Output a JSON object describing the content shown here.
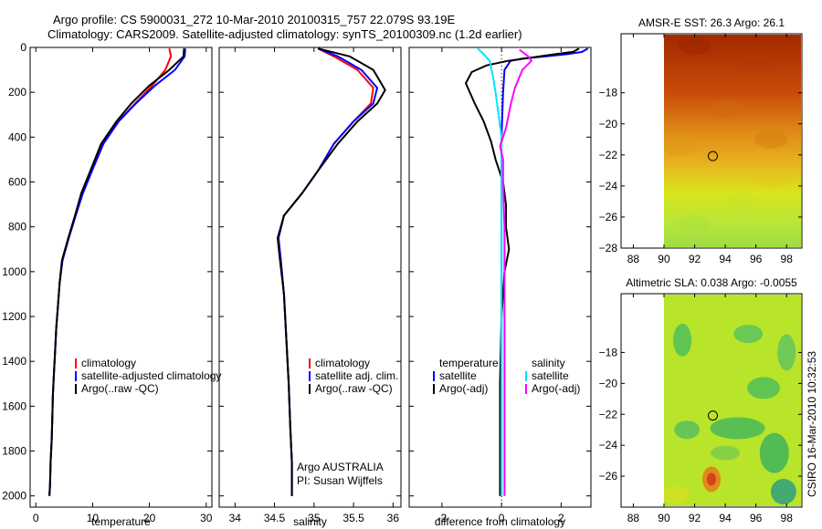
{
  "header": {
    "line1": "Argo profile: CS 5900031_272 10-Mar-2010 20100315_757 22.079S 93.19E",
    "line2": "Climatology: CARS2009. Satellite-adjusted climatology: synTS_20100309.nc (1.2d earlier)"
  },
  "side_label": "CSIRO 16-Mar-2010 10:32:53",
  "colors": {
    "climatology": "#ff0000",
    "satellite": "#0000ff",
    "argo": "#000000",
    "satellite_salinity": "#00e5ff",
    "argo_salinity": "#ff00ff"
  },
  "chart_data": [
    {
      "type": "line",
      "title": "",
      "xlabel": "temperature",
      "ylabel": "",
      "xlim": [
        -1,
        31
      ],
      "ylim": [
        2050,
        0
      ],
      "xticks": [
        0,
        10,
        20,
        30
      ],
      "yticks": [
        0,
        200,
        400,
        600,
        800,
        1000,
        1200,
        1400,
        1600,
        1800,
        2000
      ],
      "legend": {
        "placement": "bottom-right",
        "entries": [
          "climatology",
          "satellite-adjusted climatology",
          "Argo(..raw -QC)"
        ]
      },
      "series": [
        {
          "name": "climatology",
          "color": "#ff0000",
          "points": [
            [
              23.5,
              5
            ],
            [
              23.8,
              40
            ],
            [
              22.8,
              100
            ],
            [
              20.5,
              170
            ],
            [
              17.5,
              250
            ],
            [
              14.5,
              330
            ],
            [
              11.8,
              430
            ],
            [
              9.8,
              550
            ],
            [
              8.2,
              650
            ],
            [
              7.0,
              750
            ],
            [
              5.8,
              850
            ],
            [
              4.7,
              950
            ],
            [
              4.2,
              1050
            ],
            [
              3.9,
              1150
            ],
            [
              3.6,
              1250
            ],
            [
              3.4,
              1350
            ],
            [
              3.2,
              1450
            ],
            [
              3.0,
              1550
            ],
            [
              2.9,
              1650
            ],
            [
              2.8,
              1750
            ],
            [
              2.6,
              1850
            ],
            [
              2.5,
              1950
            ],
            [
              2.4,
              2000
            ]
          ]
        },
        {
          "name": "satellite-adjusted climatology",
          "color": "#0000ff",
          "points": [
            [
              26.3,
              5
            ],
            [
              26.2,
              40
            ],
            [
              24.5,
              100
            ],
            [
              21.0,
              170
            ],
            [
              17.6,
              250
            ],
            [
              14.6,
              330
            ],
            [
              11.9,
              430
            ],
            [
              9.9,
              550
            ],
            [
              8.3,
              650
            ],
            [
              7.0,
              750
            ],
            [
              5.8,
              850
            ],
            [
              4.7,
              950
            ],
            [
              4.2,
              1050
            ],
            [
              3.9,
              1150
            ],
            [
              3.6,
              1250
            ],
            [
              3.4,
              1350
            ],
            [
              3.2,
              1450
            ],
            [
              3.0,
              1550
            ],
            [
              2.9,
              1650
            ],
            [
              2.8,
              1750
            ],
            [
              2.6,
              1850
            ],
            [
              2.5,
              1950
            ],
            [
              2.4,
              2000
            ]
          ]
        },
        {
          "name": "Argo(..raw -QC)",
          "color": "#000000",
          "points": [
            [
              26.1,
              5
            ],
            [
              26.0,
              40
            ],
            [
              23.5,
              100
            ],
            [
              20.0,
              170
            ],
            [
              16.8,
              250
            ],
            [
              14.2,
              330
            ],
            [
              11.5,
              430
            ],
            [
              9.6,
              550
            ],
            [
              8.0,
              650
            ],
            [
              6.9,
              750
            ],
            [
              5.7,
              850
            ],
            [
              4.6,
              950
            ],
            [
              4.2,
              1050
            ],
            [
              3.9,
              1150
            ],
            [
              3.6,
              1250
            ],
            [
              3.4,
              1350
            ],
            [
              3.2,
              1450
            ],
            [
              3.0,
              1550
            ],
            [
              2.9,
              1650
            ],
            [
              2.8,
              1750
            ],
            [
              2.6,
              1850
            ],
            [
              2.5,
              1950
            ],
            [
              2.4,
              2000
            ]
          ]
        }
      ]
    },
    {
      "type": "line",
      "title": "",
      "xlabel": "salinity",
      "ylabel": "",
      "xlim": [
        33.8,
        36.1
      ],
      "ylim": [
        2050,
        0
      ],
      "xticks": [
        34,
        34.5,
        35,
        35.5,
        36
      ],
      "xtick_labels": [
        "34",
        "34.5",
        "35",
        "35.5",
        "36"
      ],
      "legend": {
        "placement": "bottom-right",
        "entries": [
          "climatology",
          "satellite adj. clim.",
          "Argo(..raw -QC)"
        ]
      },
      "annotations": [
        "Argo AUSTRALIA",
        "PI: Susan Wijffels"
      ],
      "series": [
        {
          "name": "climatology",
          "color": "#ff0000",
          "points": [
            [
              35.05,
              5
            ],
            [
              35.25,
              40
            ],
            [
              35.55,
              100
            ],
            [
              35.75,
              180
            ],
            [
              35.72,
              250
            ],
            [
              35.5,
              330
            ],
            [
              35.25,
              430
            ],
            [
              35.05,
              550
            ],
            [
              34.85,
              650
            ],
            [
              34.62,
              750
            ],
            [
              34.55,
              850
            ],
            [
              34.58,
              950
            ],
            [
              34.62,
              1100
            ],
            [
              34.65,
              1300
            ],
            [
              34.68,
              1500
            ],
            [
              34.7,
              1700
            ],
            [
              34.72,
              1850
            ],
            [
              34.72,
              2000
            ]
          ]
        },
        {
          "name": "satellite adj. clim.",
          "color": "#0000ff",
          "points": [
            [
              35.05,
              5
            ],
            [
              35.3,
              40
            ],
            [
              35.6,
              100
            ],
            [
              35.8,
              180
            ],
            [
              35.75,
              250
            ],
            [
              35.5,
              330
            ],
            [
              35.25,
              430
            ],
            [
              35.05,
              550
            ],
            [
              34.85,
              650
            ],
            [
              34.62,
              750
            ],
            [
              34.55,
              850
            ],
            [
              34.58,
              950
            ],
            [
              34.62,
              1100
            ],
            [
              34.65,
              1300
            ],
            [
              34.68,
              1500
            ],
            [
              34.7,
              1700
            ],
            [
              34.72,
              1850
            ],
            [
              34.72,
              2000
            ]
          ]
        },
        {
          "name": "Argo(..raw -QC)",
          "color": "#000000",
          "points": [
            [
              35.05,
              5
            ],
            [
              35.45,
              40
            ],
            [
              35.75,
              100
            ],
            [
              35.9,
              190
            ],
            [
              35.8,
              250
            ],
            [
              35.55,
              330
            ],
            [
              35.3,
              430
            ],
            [
              35.05,
              550
            ],
            [
              34.85,
              650
            ],
            [
              34.62,
              750
            ],
            [
              34.54,
              850
            ],
            [
              34.57,
              950
            ],
            [
              34.62,
              1100
            ],
            [
              34.65,
              1300
            ],
            [
              34.68,
              1500
            ],
            [
              34.7,
              1700
            ],
            [
              34.72,
              1850
            ],
            [
              34.72,
              2000
            ]
          ]
        }
      ]
    },
    {
      "type": "line",
      "title": "",
      "xlabel": "difference from climatology",
      "ylabel": "",
      "xlim": [
        -3.1,
        3.0
      ],
      "ylim": [
        2050,
        0
      ],
      "xticks": [
        -2,
        0,
        2
      ],
      "legend": {
        "placement": "bottom-right",
        "entries": [
          "temperature",
          "satellite",
          "Argo(-adj)",
          "salinity",
          "satellite",
          "Argo(-adj)"
        ]
      },
      "series": [
        {
          "name": "satellite",
          "group": "temperature",
          "color": "#0000ff",
          "points": [
            [
              2.9,
              5
            ],
            [
              2.7,
              20
            ],
            [
              2.2,
              30
            ],
            [
              1.5,
              40
            ],
            [
              0.7,
              50
            ],
            [
              0.3,
              60
            ],
            [
              0.1,
              100
            ],
            [
              0.05,
              200
            ],
            [
              0.0,
              400
            ],
            [
              0.0,
              800
            ],
            [
              0.0,
              1200
            ],
            [
              0.0,
              2000
            ]
          ]
        },
        {
          "name": "Argo(-adj)",
          "group": "temperature",
          "color": "#000000",
          "points": [
            [
              2.6,
              5
            ],
            [
              2.4,
              20
            ],
            [
              1.8,
              30
            ],
            [
              1.0,
              45
            ],
            [
              0.2,
              60
            ],
            [
              -0.5,
              80
            ],
            [
              -1.0,
              110
            ],
            [
              -1.2,
              160
            ],
            [
              -0.9,
              250
            ],
            [
              -0.6,
              330
            ],
            [
              -0.35,
              420
            ],
            [
              -0.2,
              500
            ],
            [
              0.05,
              600
            ],
            [
              0.15,
              700
            ],
            [
              0.15,
              800
            ],
            [
              0.25,
              900
            ],
            [
              0.1,
              1000
            ],
            [
              0.0,
              1200
            ],
            [
              -0.05,
              1500
            ],
            [
              -0.05,
              1800
            ],
            [
              -0.05,
              2000
            ]
          ]
        },
        {
          "name": "satellite",
          "group": "salinity",
          "color": "#00e5ff",
          "points": [
            [
              -0.8,
              5
            ],
            [
              -0.6,
              30
            ],
            [
              -0.4,
              60
            ],
            [
              -0.3,
              120
            ],
            [
              -0.2,
              200
            ],
            [
              0.0,
              400
            ],
            [
              0.0,
              600
            ],
            [
              0.0,
              800
            ],
            [
              0.0,
              1000
            ],
            [
              0.0,
              1200
            ],
            [
              0.0,
              1500
            ],
            [
              0.0,
              2000
            ]
          ]
        },
        {
          "name": "Argo(-adj)",
          "group": "salinity",
          "color": "#ff00ff",
          "points": [
            [
              0.6,
              10
            ],
            [
              0.9,
              40
            ],
            [
              1.0,
              60
            ],
            [
              0.7,
              100
            ],
            [
              0.45,
              180
            ],
            [
              0.3,
              260
            ],
            [
              0.15,
              360
            ],
            [
              -0.05,
              440
            ],
            [
              0.05,
              500
            ],
            [
              0.05,
              600
            ],
            [
              0.1,
              800
            ],
            [
              0.1,
              1000
            ],
            [
              0.1,
              1200
            ],
            [
              0.1,
              1500
            ],
            [
              0.1,
              1800
            ],
            [
              0.1,
              2000
            ]
          ]
        }
      ]
    },
    {
      "type": "heatmap",
      "title": "AMSR-E SST: 26.3 Argo: 26.1",
      "xlim": [
        87.2,
        99.0
      ],
      "ylim": [
        -28,
        -14.2
      ],
      "xticks": [
        88,
        90,
        92,
        94,
        96,
        98
      ],
      "yticks": [
        -28,
        -26,
        -24,
        -22,
        -20,
        -18
      ],
      "marker": {
        "lon": 93.19,
        "lat": -22.079
      },
      "colors_by_lat": [
        {
          "lat": -14.5,
          "color": "#a52a00"
        },
        {
          "lat": -18,
          "color": "#c84b08"
        },
        {
          "lat": -20.5,
          "color": "#de8a16"
        },
        {
          "lat": -22.5,
          "color": "#e8b21e"
        },
        {
          "lat": -24.5,
          "color": "#d8e61c"
        },
        {
          "lat": -26.5,
          "color": "#b6e63a"
        },
        {
          "lat": -28,
          "color": "#9edc46"
        }
      ]
    },
    {
      "type": "heatmap",
      "title": "Altimetric SLA: 0.038 Argo: -0.0055",
      "xlim": [
        87.2,
        99.0
      ],
      "ylim": [
        -28,
        -14.2
      ],
      "xticks": [
        88,
        90,
        92,
        94,
        96,
        98
      ],
      "yticks": [
        -26,
        -24,
        -22,
        -20,
        -18
      ],
      "marker": {
        "lon": 93.19,
        "lat": -22.079
      },
      "background_color": "#b8e52a"
    }
  ]
}
